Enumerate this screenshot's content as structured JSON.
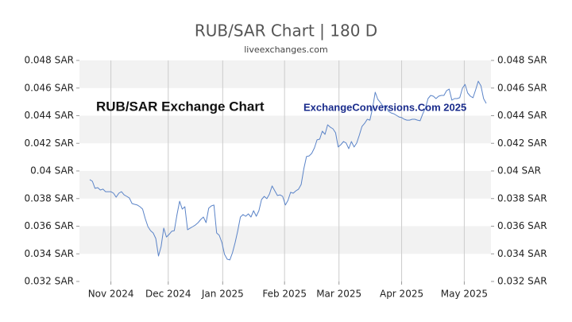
{
  "chart_data": {
    "type": "line",
    "title": "RUB/SAR Chart | 180 D",
    "subtitle": "liveexchanges.com",
    "annotations": [
      "RUB/SAR Exchange Chart",
      "ExchangeConversions.Com 2025"
    ],
    "series": [
      {
        "name": "RUB/SAR",
        "color": "#5b84c8",
        "values": [
          0.03937,
          0.03925,
          0.03874,
          0.03879,
          0.03862,
          0.03868,
          0.0385,
          0.0385,
          0.0385,
          0.03839,
          0.0381,
          0.03839,
          0.0385,
          0.03827,
          0.03816,
          0.03804,
          0.03764,
          0.03758,
          0.03753,
          0.03741,
          0.03724,
          0.03655,
          0.03597,
          0.03568,
          0.03551,
          0.03511,
          0.03384,
          0.03453,
          0.03586,
          0.03522,
          0.0354,
          0.03563,
          0.03568,
          0.03684,
          0.03781,
          0.03724,
          0.03741,
          0.03574,
          0.03586,
          0.03597,
          0.03609,
          0.03626,
          0.03649,
          0.03666,
          0.03626,
          0.0373,
          0.03747,
          0.03753,
          0.03551,
          0.03534,
          0.03482,
          0.03396,
          0.03361,
          0.03356,
          0.03407,
          0.03482,
          0.03568,
          0.03666,
          0.03684,
          0.03672,
          0.03689,
          0.03666,
          0.03712,
          0.03672,
          0.03712,
          0.03793,
          0.03816,
          0.03799,
          0.03833,
          0.03891,
          0.03856,
          0.03822,
          0.03827,
          0.03816,
          0.03753,
          0.03787,
          0.03845,
          0.03839,
          0.03856,
          0.03868,
          0.03902,
          0.04017,
          0.04104,
          0.04109,
          0.04127,
          0.04167,
          0.04225,
          0.0423,
          0.04288,
          0.04265,
          0.04334,
          0.04317,
          0.04305,
          0.04276,
          0.04173,
          0.0419,
          0.04213,
          0.04202,
          0.04161,
          0.04213,
          0.04173,
          0.04202,
          0.04259,
          0.04322,
          0.04345,
          0.04374,
          0.04368,
          0.04455,
          0.0457,
          0.04518,
          0.04495,
          0.04466,
          0.04472,
          0.04432,
          0.0442,
          0.04414,
          0.04403,
          0.04391,
          0.04386,
          0.04374,
          0.04368,
          0.04368,
          0.04374,
          0.04374,
          0.04368,
          0.04363,
          0.04414,
          0.04455,
          0.04524,
          0.04547,
          0.04541,
          0.04524,
          0.04541,
          0.04547,
          0.04547,
          0.04581,
          0.04593,
          0.04512,
          0.04524,
          0.04524,
          0.0453,
          0.04599,
          0.04627,
          0.04564,
          0.04541,
          0.0453,
          0.04587,
          0.0465,
          0.04616,
          0.04524,
          0.04489
        ]
      }
    ],
    "xlim": [
      -3.9,
      151.8
    ],
    "xticks": [
      {
        "value": 8,
        "label": "Nov 2024"
      },
      {
        "value": 29.7,
        "label": "Dec 2024"
      },
      {
        "value": 50.3,
        "label": "Jan 2025"
      },
      {
        "value": 73.7,
        "label": "Feb 2025"
      },
      {
        "value": 94.3,
        "label": "Mar 2025"
      },
      {
        "value": 118,
        "label": "Apr 2025"
      },
      {
        "value": 141.7,
        "label": "May 2025"
      }
    ],
    "ylim": [
      0.032,
      0.048
    ],
    "yticks": [
      {
        "value": 0.032,
        "label": "0.032 SAR"
      },
      {
        "value": 0.034,
        "label": "0.034 SAR"
      },
      {
        "value": 0.036,
        "label": "0.036 SAR"
      },
      {
        "value": 0.038,
        "label": "0.038 SAR"
      },
      {
        "value": 0.04,
        "label": "0.04 SAR"
      },
      {
        "value": 0.042,
        "label": "0.042 SAR"
      },
      {
        "value": 0.044,
        "label": "0.044 SAR"
      },
      {
        "value": 0.046,
        "label": "0.046 SAR"
      },
      {
        "value": 0.048,
        "label": "0.048 SAR"
      }
    ],
    "grid": true
  }
}
